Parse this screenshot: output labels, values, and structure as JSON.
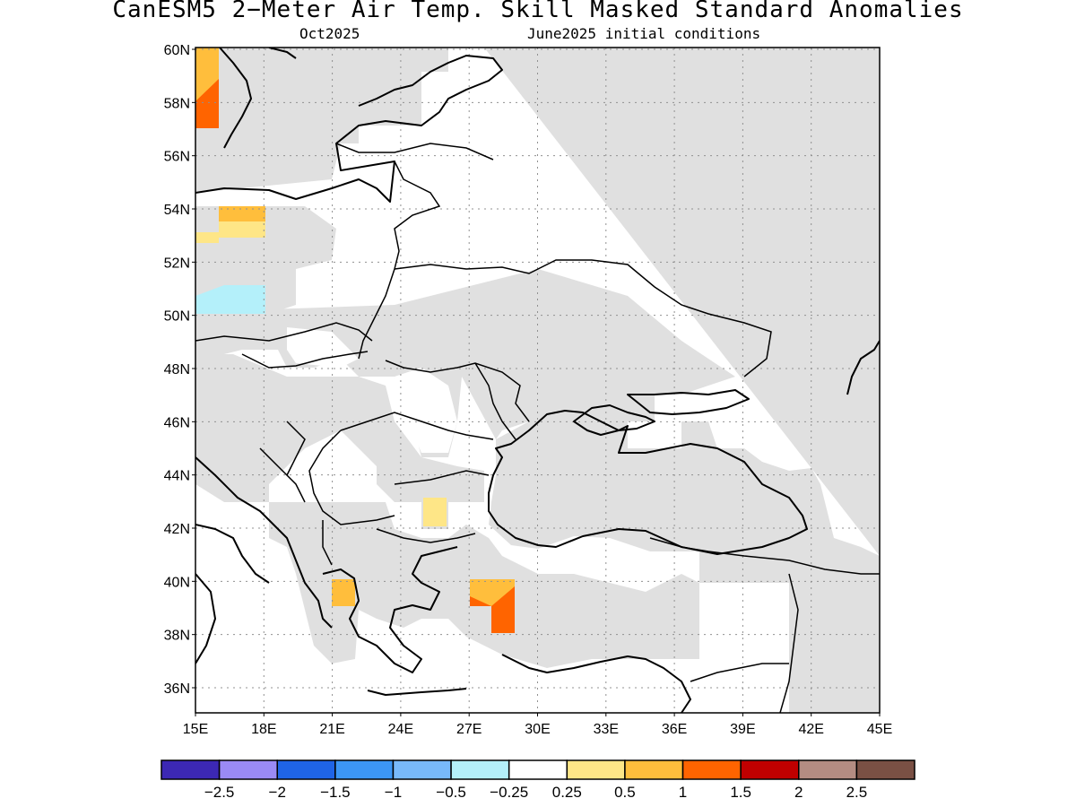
{
  "title": "CanESM5 2−Meter Air Temp. Skill Masked Standard Anomalies",
  "subtitle_left": "Oct2025",
  "subtitle_right": "June2025 initial conditions",
  "lat_ticks": [
    "60N",
    "58N",
    "56N",
    "54N",
    "52N",
    "50N",
    "48N",
    "46N",
    "44N",
    "42N",
    "40N",
    "38N",
    "36N"
  ],
  "lon_ticks": [
    "15E",
    "18E",
    "21E",
    "24E",
    "27E",
    "30E",
    "33E",
    "36E",
    "39E",
    "42E",
    "45E"
  ],
  "colorbar": {
    "colors": [
      "#3c28b4",
      "#9a8af5",
      "#1f64e6",
      "#3c96f5",
      "#78b9fa",
      "#b4f0fa",
      "#ffffff",
      "#fee687",
      "#ffbe3c",
      "#ff6400",
      "#c00000",
      "#b48c82",
      "#7a5044"
    ],
    "labels": [
      "−2.5",
      "−2",
      "−1.5",
      "−1",
      "−0.5",
      "−0.25",
      "0.25",
      "0.5",
      "1",
      "1.5",
      "2",
      "2.5"
    ]
  },
  "colors": {
    "masked": "#e0e0e0",
    "frame": "#000000",
    "grid": "#909090"
  }
}
